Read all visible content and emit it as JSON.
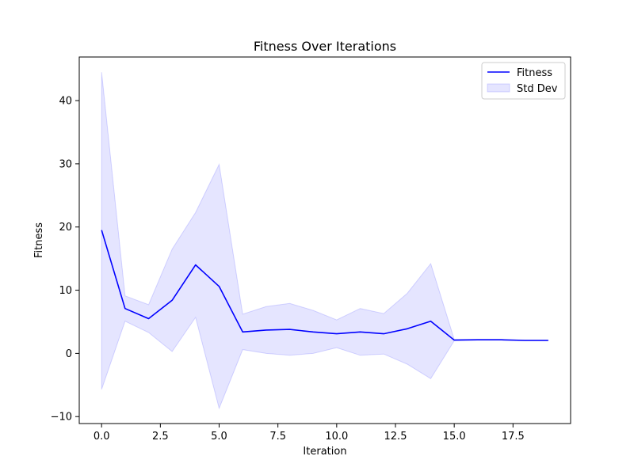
{
  "chart_data": {
    "type": "line",
    "title": "Fitness Over Iterations",
    "xlabel": "Iteration",
    "ylabel": "Fitness",
    "xlim": [
      -0.95,
      19.95
    ],
    "ylim": [
      -11.1,
      46.9
    ],
    "xticks": [
      0,
      2.5,
      5,
      7.5,
      10,
      12.5,
      15,
      17.5
    ],
    "xtick_labels": [
      "0.0",
      "2.5",
      "5.0",
      "7.5",
      "10.0",
      "12.5",
      "15.0",
      "17.5"
    ],
    "yticks": [
      -10,
      0,
      10,
      20,
      30,
      40
    ],
    "ytick_labels": [
      "−10",
      "0",
      "10",
      "20",
      "30",
      "40"
    ],
    "grid": false,
    "legend_position": "top-right",
    "x": [
      0,
      1,
      2,
      3,
      4,
      5,
      6,
      7,
      8,
      9,
      10,
      11,
      12,
      13,
      14,
      15,
      16,
      17,
      18,
      19
    ],
    "series": [
      {
        "name": "Fitness",
        "kind": "line",
        "color": "#0000ff",
        "values": [
          19.5,
          7.1,
          5.5,
          8.4,
          14.0,
          10.6,
          3.4,
          3.7,
          3.8,
          3.4,
          3.1,
          3.4,
          3.1,
          3.9,
          5.1,
          2.1,
          2.15,
          2.15,
          2.05,
          2.05
        ]
      },
      {
        "name": "Std Dev",
        "kind": "band",
        "color": "#0000ff",
        "opacity": 0.1,
        "lower": [
          -5.7,
          5.1,
          3.3,
          0.3,
          5.7,
          -8.7,
          0.6,
          0.0,
          -0.3,
          0.0,
          0.9,
          -0.3,
          -0.1,
          -1.7,
          -4.0,
          2.0,
          2.1,
          2.1,
          2.0,
          2.0
        ],
        "upper": [
          44.5,
          9.1,
          7.7,
          16.5,
          22.3,
          29.9,
          6.2,
          7.4,
          7.9,
          6.8,
          5.3,
          7.1,
          6.3,
          9.5,
          14.2,
          2.2,
          2.2,
          2.2,
          2.1,
          2.1
        ]
      }
    ]
  }
}
